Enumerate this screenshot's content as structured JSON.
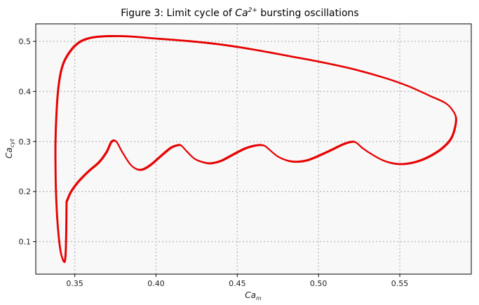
{
  "chart_data": {
    "type": "line",
    "title": "Figure 3: Limit cycle of Ca²⁺ bursting oscillations",
    "title_parts": {
      "prefix": "Figure 3: Limit cycle of ",
      "symbol": "Ca",
      "sup": "2+",
      "suffix": " bursting oscillations"
    },
    "xlabel": {
      "base": "Ca",
      "sub": "m"
    },
    "ylabel": {
      "base": "Ca",
      "sub": "cyt"
    },
    "xlim": [
      0.326,
      0.594
    ],
    "ylim": [
      0.035,
      0.535
    ],
    "xticks": [
      0.35,
      0.4,
      0.45,
      0.5,
      0.55
    ],
    "xtick_labels": [
      "0.35",
      "0.40",
      "0.45",
      "0.50",
      "0.55"
    ],
    "yticks": [
      0.1,
      0.2,
      0.3,
      0.4,
      0.5
    ],
    "ytick_labels": [
      "0.1",
      "0.2",
      "0.3",
      "0.4",
      "0.5"
    ],
    "grid": true,
    "plot_background": "#f8f8f8",
    "grid_color": "#c4c4c4",
    "line_color": "#e60000",
    "series": [
      {
        "x": [
          0.3448,
          0.3475,
          0.352,
          0.358,
          0.365,
          0.3695,
          0.3725,
          0.3755,
          0.379,
          0.384,
          0.388,
          0.392,
          0.397,
          0.403,
          0.409,
          0.413,
          0.4155,
          0.419,
          0.424,
          0.43,
          0.434,
          0.44,
          0.447,
          0.455,
          0.462,
          0.4665,
          0.47,
          0.475,
          0.481,
          0.487,
          0.493,
          0.5,
          0.508,
          0.515,
          0.5205,
          0.5235,
          0.527,
          0.533,
          0.54,
          0.547,
          0.554,
          0.562,
          0.57,
          0.577,
          0.582,
          0.5845,
          0.583,
          0.578,
          0.568,
          0.555,
          0.54,
          0.52,
          0.5,
          0.48,
          0.46,
          0.44,
          0.42,
          0.4,
          0.385,
          0.372,
          0.362,
          0.355,
          0.35,
          0.346,
          0.343,
          0.341,
          0.3395,
          0.3385,
          0.338,
          0.338,
          0.3383,
          0.339,
          0.34,
          0.3412,
          0.3425,
          0.3435,
          0.3442,
          0.3446,
          0.3448
        ],
        "y": [
          0.18,
          0.2,
          0.22,
          0.24,
          0.26,
          0.28,
          0.3,
          0.3,
          0.28,
          0.255,
          0.245,
          0.245,
          0.255,
          0.272,
          0.288,
          0.293,
          0.292,
          0.28,
          0.265,
          0.258,
          0.257,
          0.262,
          0.274,
          0.287,
          0.293,
          0.292,
          0.283,
          0.27,
          0.262,
          0.26,
          0.263,
          0.272,
          0.284,
          0.295,
          0.3,
          0.297,
          0.287,
          0.274,
          0.262,
          0.256,
          0.256,
          0.262,
          0.274,
          0.29,
          0.31,
          0.342,
          0.36,
          0.377,
          0.392,
          0.411,
          0.428,
          0.446,
          0.46,
          0.472,
          0.484,
          0.494,
          0.501,
          0.506,
          0.51,
          0.511,
          0.509,
          0.503,
          0.492,
          0.476,
          0.458,
          0.435,
          0.4,
          0.35,
          0.3,
          0.25,
          0.2,
          0.15,
          0.11,
          0.08,
          0.065,
          0.06,
          0.075,
          0.12,
          0.18
        ]
      }
    ]
  }
}
